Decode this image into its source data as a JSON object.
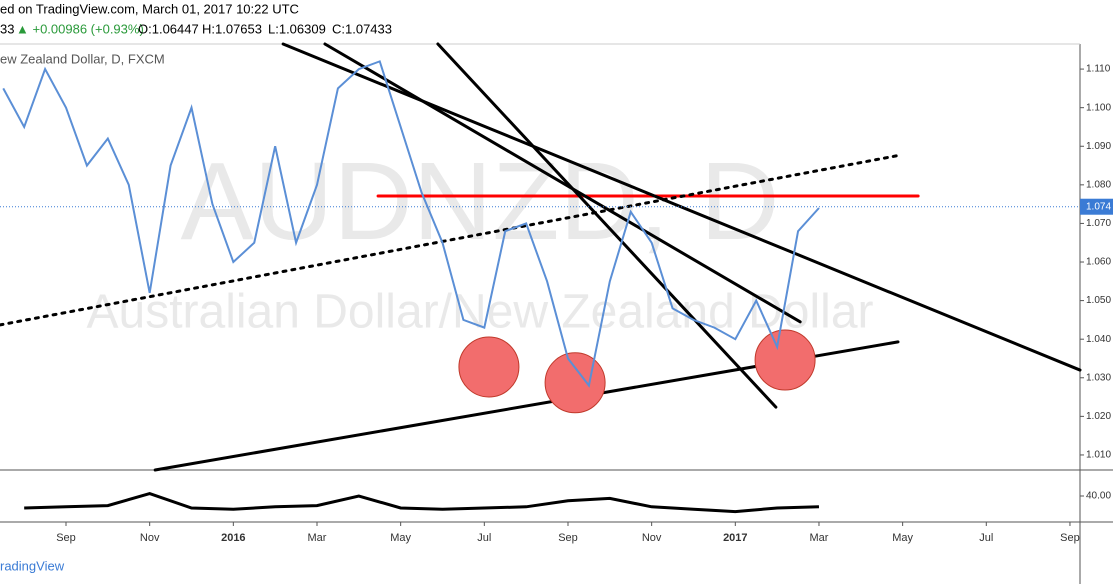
{
  "chart_data": {
    "type": "line",
    "title": "ed on TradingView.com, March 01, 2017 10:22 UTC",
    "quote_prefix": "33",
    "quote_change": "▲ +0.00986 (+0.93%)",
    "quote_open": "O:1.06447",
    "quote_high": "H:1.07653",
    "quote_low": "L:1.06309",
    "quote_close": "C:1.07433",
    "symbol": "ew Zealand Dollar, D, FXCM",
    "watermark": "AUDNZD, D",
    "watermark_sub": "Australian Dollar/New Zealand Dollar",
    "footer": "radingView",
    "x": [
      -1.5,
      -1,
      -0.5,
      0,
      0.5,
      1,
      1.5,
      2,
      2.5,
      3,
      3.5,
      4,
      4.5,
      5,
      5.5,
      6,
      6.5,
      7,
      7.5,
      8,
      8.5,
      9,
      9.5,
      10,
      10.5,
      11,
      11.5,
      12,
      12.5,
      13,
      13.5,
      14,
      14.5,
      15,
      15.5,
      16,
      16.5,
      17,
      17.5,
      18
    ],
    "series": [
      {
        "name": "AUDNZD",
        "color": "#5b8fd6",
        "values": [
          1.105,
          1.095,
          1.11,
          1.1,
          1.085,
          1.092,
          1.08,
          1.052,
          1.085,
          1.1,
          1.075,
          1.06,
          1.065,
          1.09,
          1.065,
          1.08,
          1.105,
          1.11,
          1.112,
          1.095,
          1.078,
          1.065,
          1.045,
          1.043,
          1.068,
          1.07,
          1.055,
          1.035,
          1.028,
          1.055,
          1.073,
          1.065,
          1.048,
          1.045,
          1.043,
          1.04,
          1.05,
          1.038,
          1.068,
          1.074
        ]
      }
    ],
    "xlim": [
      -1.578,
      24.24
    ],
    "ylim": [
      1.0061,
      1.1165
    ],
    "xticks": [
      {
        "value": 0,
        "label": "Sep"
      },
      {
        "value": 2,
        "label": "Nov"
      },
      {
        "value": 4,
        "label": "2016"
      },
      {
        "value": 6,
        "label": "Mar"
      },
      {
        "value": 8,
        "label": "May"
      },
      {
        "value": 10,
        "label": "Jul"
      },
      {
        "value": 12,
        "label": "Sep"
      },
      {
        "value": 14,
        "label": "Nov"
      },
      {
        "value": 16,
        "label": "2017"
      },
      {
        "value": 18,
        "label": "Mar"
      },
      {
        "value": 20,
        "label": "May"
      },
      {
        "value": 22,
        "label": "Jul"
      },
      {
        "value": 24,
        "label": "Sep"
      }
    ],
    "yticks": [
      {
        "value": 1.01,
        "label": "1.010"
      },
      {
        "value": 1.02,
        "label": "1.020"
      },
      {
        "value": 1.03,
        "label": "1.030"
      },
      {
        "value": 1.04,
        "label": "1.040"
      },
      {
        "value": 1.05,
        "label": "1.050"
      },
      {
        "value": 1.06,
        "label": "1.060"
      },
      {
        "value": 1.07,
        "label": "1.070"
      },
      {
        "value": 1.08,
        "label": "1.080"
      },
      {
        "value": 1.09,
        "label": "1.090"
      },
      {
        "value": 1.1,
        "label": "1.100"
      },
      {
        "value": 1.11,
        "label": "1.110"
      }
    ],
    "last_price": {
      "value": 1.07433,
      "label": "1.074"
    },
    "trend_lines": [
      {
        "color": "#ff0000",
        "x": [
          7.46,
          20.37
        ],
        "y": [
          1.0771,
          1.0771
        ]
      },
      {
        "color": "#000000",
        "dotted": true,
        "x": [
          -1.578,
          19.94
        ],
        "y": [
          1.0437,
          1.0877
        ]
      },
      {
        "color": "#000000",
        "x": [
          2.13,
          19.89
        ],
        "y": [
          1.0061,
          1.0393
        ]
      },
      {
        "color": "#000000",
        "x": [
          5.19,
          24.24
        ],
        "y": [
          1.1165,
          1.032
        ]
      },
      {
        "color": "#000000",
        "x": [
          8.89,
          16.97
        ],
        "y": [
          1.1165,
          1.0224
        ]
      },
      {
        "color": "#000000",
        "x": [
          6.19,
          17.55
        ],
        "y": [
          1.1165,
          1.0445
        ]
      }
    ],
    "circles": {
      "color": "#f26d6d",
      "x": [
        10.11,
        12.17,
        17.19
      ],
      "y": [
        1.0328,
        1.0287,
        1.0346
      ]
    },
    "indicator": {
      "x": [
        -1,
        0,
        1,
        2,
        3,
        4,
        5,
        6,
        7,
        8,
        9,
        10,
        11,
        12,
        13,
        14,
        15,
        16,
        17,
        18
      ],
      "values": [
        30,
        31,
        32,
        42,
        30,
        29,
        31,
        32,
        40,
        30,
        29,
        30,
        31,
        36,
        38,
        31,
        29,
        27,
        30,
        31
      ],
      "color": "#000000",
      "ylim": [
        20,
        60
      ],
      "yticks": [
        {
          "value": 40,
          "label": "40.00"
        }
      ]
    }
  }
}
